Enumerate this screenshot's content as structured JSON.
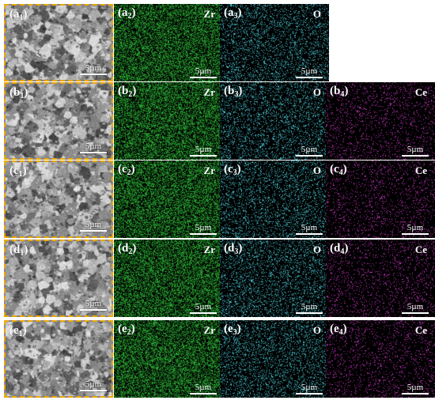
{
  "scale_bar_text": "5µm",
  "colors": {
    "sem_border": "#f0a800",
    "zr_map": "#2fbf3a",
    "o_map": "#4fd8e6",
    "ce_map": "#e040d8",
    "map_background": "#000000"
  },
  "rows": [
    {
      "letter": "a",
      "panels": [
        {
          "kind": "sem",
          "label_sub": "1"
        },
        {
          "kind": "map",
          "label_sub": "2",
          "element": "Zr"
        },
        {
          "kind": "map",
          "label_sub": "3",
          "element": "O"
        }
      ]
    },
    {
      "letter": "b",
      "panels": [
        {
          "kind": "sem",
          "label_sub": "1"
        },
        {
          "kind": "map",
          "label_sub": "2",
          "element": "Zr"
        },
        {
          "kind": "map",
          "label_sub": "3",
          "element": "O"
        },
        {
          "kind": "map",
          "label_sub": "4",
          "element": "Ce"
        }
      ]
    },
    {
      "letter": "c",
      "panels": [
        {
          "kind": "sem",
          "label_sub": "1"
        },
        {
          "kind": "map",
          "label_sub": "2",
          "element": "Zr"
        },
        {
          "kind": "map",
          "label_sub": "3",
          "element": "O"
        },
        {
          "kind": "map",
          "label_sub": "4",
          "element": "Ce"
        }
      ]
    },
    {
      "letter": "d",
      "panels": [
        {
          "kind": "sem",
          "label_sub": "1"
        },
        {
          "kind": "map",
          "label_sub": "2",
          "element": "Zr"
        },
        {
          "kind": "map",
          "label_sub": "3",
          "element": "O"
        },
        {
          "kind": "map",
          "label_sub": "4",
          "element": "Ce"
        }
      ]
    },
    {
      "letter": "e",
      "panels": [
        {
          "kind": "sem",
          "label_sub": "1"
        },
        {
          "kind": "map",
          "label_sub": "2",
          "element": "Zr"
        },
        {
          "kind": "map",
          "label_sub": "3",
          "element": "O"
        },
        {
          "kind": "map",
          "label_sub": "4",
          "element": "Ce"
        }
      ]
    }
  ]
}
